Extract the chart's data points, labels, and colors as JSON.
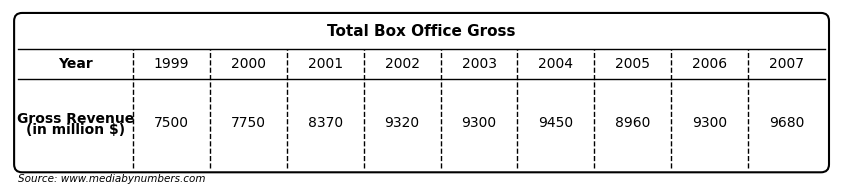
{
  "title": "Total Box Office Gross",
  "years": [
    "1999",
    "2000",
    "2001",
    "2002",
    "2003",
    "2004",
    "2005",
    "2006",
    "2007"
  ],
  "gross_revenue": [
    "7500",
    "7750",
    "8370",
    "9320",
    "9300",
    "9450",
    "8960",
    "9300",
    "9680"
  ],
  "row1_label": "Year",
  "row2_label_line1": "Gross Revenue",
  "row2_label_line2": "(in million $)",
  "source_text": "Source: www.mediabynumbers.com",
  "bg_color": "#ffffff",
  "outer_border_color": "#000000",
  "cell_border_color": "#000000",
  "title_fontsize": 11,
  "cell_fontsize": 10,
  "source_fontsize": 7.5
}
